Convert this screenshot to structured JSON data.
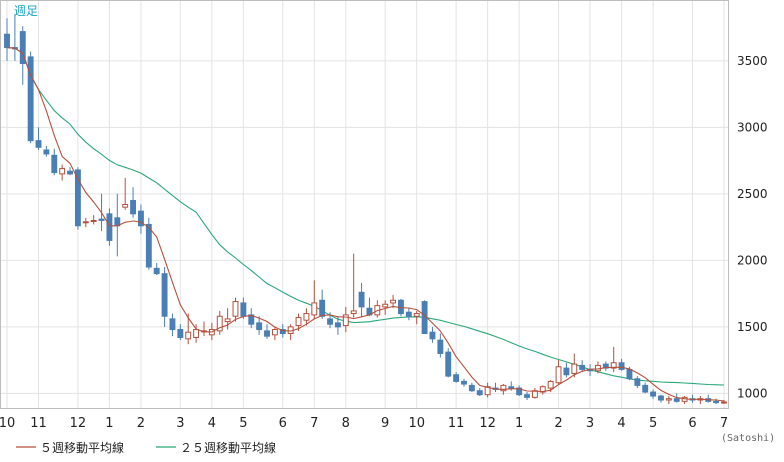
{
  "chart_data": {
    "type": "candlestick",
    "timeframe_label": "週足",
    "unit_label": "(Satoshi)",
    "y_ticks": [
      1000,
      1500,
      2000,
      2500,
      3000,
      3500
    ],
    "ylim": [
      890,
      3950
    ],
    "x_tick_labels": [
      "10",
      "11",
      "12",
      "1",
      "2",
      "3",
      "4",
      "5",
      "6",
      "7",
      "8",
      "9",
      "10",
      "11",
      "12",
      "1",
      "2",
      "3",
      "4",
      "5",
      "6",
      "7"
    ],
    "x_tick_index": [
      0,
      4,
      9,
      13,
      17,
      22,
      26,
      30,
      35,
      39,
      43,
      48,
      52,
      57,
      61,
      65,
      70,
      74,
      78,
      82,
      87,
      91
    ],
    "colors": {
      "up": "#ffffff",
      "up_border": "#b5503c",
      "down": "#4a7fb5",
      "ma5": "#b5503c",
      "ma25": "#2aa878",
      "grid": "#e3e3e3"
    },
    "series": [
      {
        "name": "５週移動平均線",
        "color": "#b5503c"
      },
      {
        "name": "２５週移動平均線",
        "color": "#2aa878"
      }
    ],
    "candles": [
      [
        3700,
        3820,
        3500,
        3600
      ],
      [
        3600,
        3850,
        3500,
        3590
      ],
      [
        3720,
        3760,
        3320,
        3480
      ],
      [
        3530,
        3570,
        2880,
        2900
      ],
      [
        2900,
        3000,
        2830,
        2850
      ],
      [
        2830,
        2860,
        2780,
        2800
      ],
      [
        2790,
        2840,
        2640,
        2660
      ],
      [
        2650,
        2720,
        2600,
        2690
      ],
      [
        2670,
        2700,
        2640,
        2650
      ],
      [
        2680,
        2700,
        2230,
        2260
      ],
      [
        2290,
        2320,
        2250,
        2290
      ],
      [
        2300,
        2340,
        2270,
        2300
      ],
      [
        2310,
        2500,
        2220,
        2300
      ],
      [
        2350,
        2390,
        2110,
        2150
      ],
      [
        2320,
        2500,
        2030,
        2260
      ],
      [
        2400,
        2620,
        2380,
        2420
      ],
      [
        2450,
        2550,
        2320,
        2350
      ],
      [
        2370,
        2420,
        2200,
        2260
      ],
      [
        2270,
        2320,
        1930,
        1950
      ],
      [
        1940,
        1980,
        1890,
        1900
      ],
      [
        1900,
        1950,
        1500,
        1580
      ],
      [
        1560,
        1600,
        1430,
        1480
      ],
      [
        1480,
        1520,
        1400,
        1420
      ],
      [
        1410,
        1600,
        1370,
        1460
      ],
      [
        1420,
        1520,
        1380,
        1480
      ],
      [
        1470,
        1540,
        1430,
        1470
      ],
      [
        1440,
        1530,
        1400,
        1480
      ],
      [
        1470,
        1620,
        1440,
        1580
      ],
      [
        1540,
        1640,
        1480,
        1560
      ],
      [
        1580,
        1720,
        1540,
        1690
      ],
      [
        1680,
        1720,
        1560,
        1580
      ],
      [
        1590,
        1640,
        1490,
        1520
      ],
      [
        1530,
        1580,
        1440,
        1480
      ],
      [
        1470,
        1520,
        1410,
        1430
      ],
      [
        1440,
        1500,
        1400,
        1480
      ],
      [
        1480,
        1520,
        1420,
        1450
      ],
      [
        1450,
        1520,
        1400,
        1500
      ],
      [
        1510,
        1600,
        1470,
        1570
      ],
      [
        1550,
        1640,
        1510,
        1600
      ],
      [
        1590,
        1850,
        1560,
        1680
      ],
      [
        1700,
        1780,
        1560,
        1580
      ],
      [
        1560,
        1610,
        1490,
        1520
      ],
      [
        1530,
        1580,
        1440,
        1500
      ],
      [
        1510,
        1650,
        1460,
        1590
      ],
      [
        1600,
        2050,
        1570,
        1620
      ],
      [
        1760,
        1830,
        1570,
        1650
      ],
      [
        1640,
        1720,
        1580,
        1590
      ],
      [
        1590,
        1700,
        1570,
        1660
      ],
      [
        1650,
        1700,
        1590,
        1670
      ],
      [
        1680,
        1740,
        1640,
        1700
      ],
      [
        1700,
        1710,
        1580,
        1600
      ],
      [
        1610,
        1640,
        1550,
        1580
      ],
      [
        1580,
        1620,
        1520,
        1600
      ],
      [
        1690,
        1700,
        1450,
        1450
      ],
      [
        1460,
        1500,
        1380,
        1410
      ],
      [
        1400,
        1450,
        1270,
        1300
      ],
      [
        1310,
        1340,
        1120,
        1130
      ],
      [
        1140,
        1160,
        1080,
        1090
      ],
      [
        1090,
        1110,
        1050,
        1070
      ],
      [
        1060,
        1080,
        1010,
        1020
      ],
      [
        1020,
        1040,
        980,
        990
      ],
      [
        990,
        1080,
        970,
        1050
      ],
      [
        1040,
        1080,
        1010,
        1030
      ],
      [
        1020,
        1070,
        990,
        1060
      ],
      [
        1050,
        1090,
        1020,
        1040
      ],
      [
        1040,
        1060,
        980,
        990
      ],
      [
        990,
        1010,
        950,
        970
      ],
      [
        970,
        1040,
        960,
        1020
      ],
      [
        1010,
        1060,
        990,
        1050
      ],
      [
        1040,
        1100,
        1010,
        1090
      ],
      [
        1080,
        1250,
        1070,
        1200
      ],
      [
        1190,
        1230,
        1120,
        1140
      ],
      [
        1150,
        1300,
        1120,
        1220
      ],
      [
        1210,
        1250,
        1160,
        1180
      ],
      [
        1180,
        1220,
        1130,
        1170
      ],
      [
        1170,
        1240,
        1150,
        1210
      ],
      [
        1220,
        1240,
        1170,
        1190
      ],
      [
        1190,
        1350,
        1160,
        1230
      ],
      [
        1230,
        1260,
        1170,
        1180
      ],
      [
        1180,
        1200,
        1100,
        1110
      ],
      [
        1110,
        1130,
        1040,
        1060
      ],
      [
        1060,
        1080,
        1000,
        1010
      ],
      [
        1010,
        1030,
        960,
        980
      ],
      [
        980,
        990,
        930,
        950
      ],
      [
        950,
        980,
        920,
        960
      ],
      [
        960,
        1000,
        930,
        940
      ],
      [
        940,
        980,
        920,
        970
      ],
      [
        960,
        990,
        930,
        950
      ],
      [
        950,
        980,
        920,
        960
      ],
      [
        960,
        990,
        930,
        940
      ],
      [
        940,
        960,
        920,
        930
      ],
      [
        930,
        950,
        920,
        935
      ]
    ]
  }
}
